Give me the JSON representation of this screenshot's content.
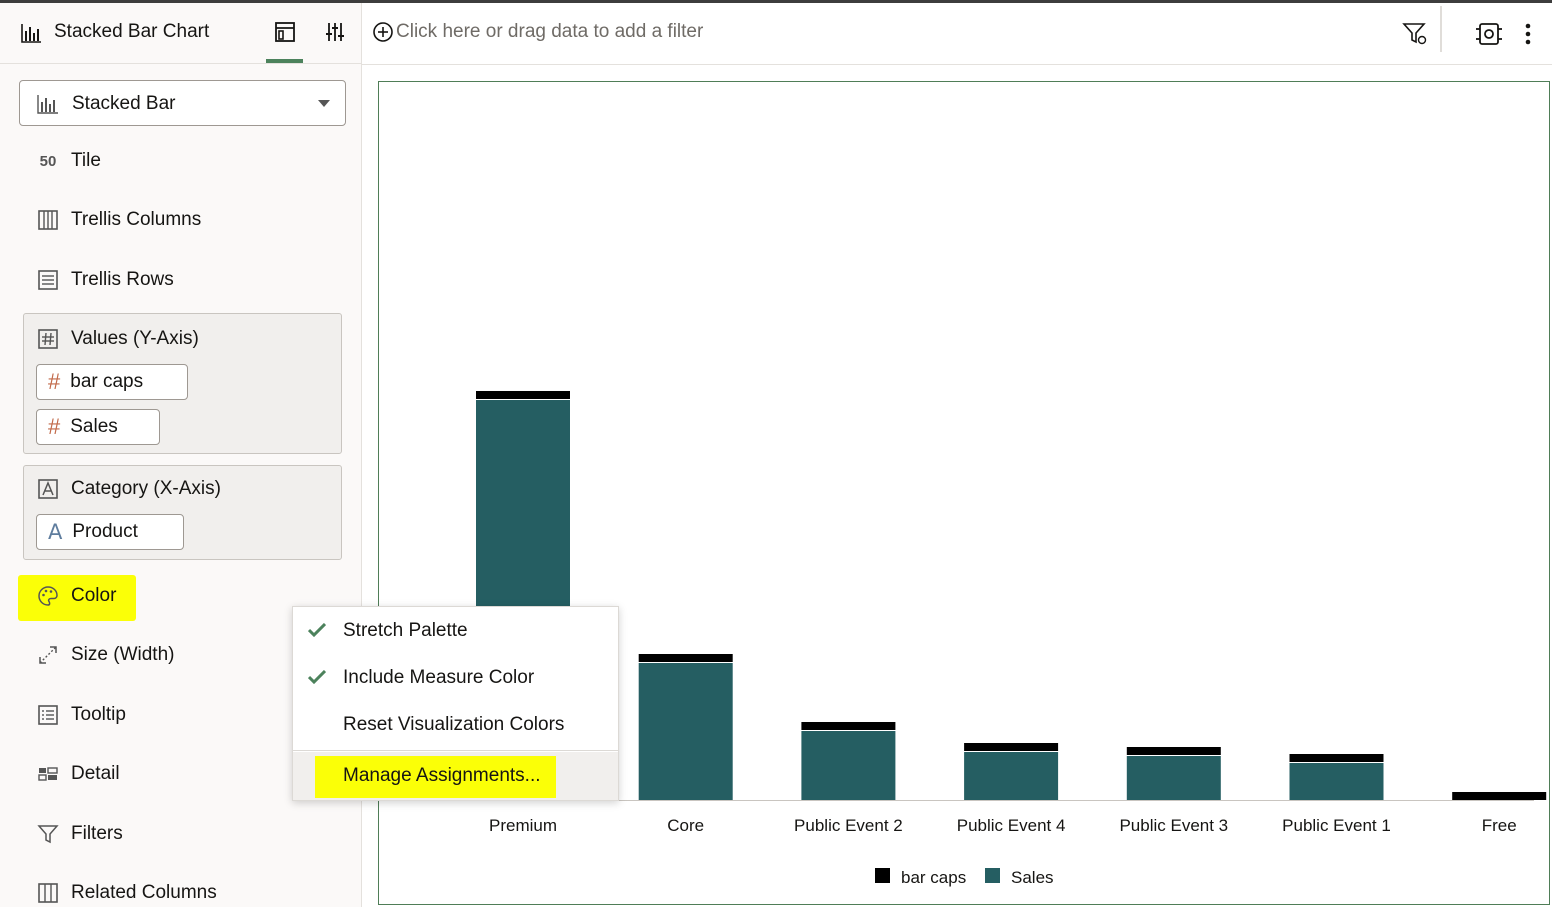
{
  "panel": {
    "title": "Stacked Bar Chart",
    "viz_type": "Stacked Bar",
    "drop_targets": {
      "tile": "Tile",
      "trellis_columns": "Trellis Columns",
      "trellis_rows": "Trellis Rows",
      "values_title": "Values (Y-Axis)",
      "values_items": [
        "bar caps",
        "Sales"
      ],
      "category_title": "Category (X-Axis)",
      "category_items": [
        "Product"
      ],
      "color": "Color",
      "size": "Size (Width)",
      "tooltip": "Tooltip",
      "detail": "Detail",
      "filters": "Filters",
      "related_columns": "Related Columns"
    }
  },
  "filterbar": {
    "placeholder": "Click here or drag data to add a filter"
  },
  "menu": {
    "items": [
      {
        "label": "Stretch Palette",
        "checked": true
      },
      {
        "label": "Include Measure Color",
        "checked": true
      },
      {
        "label": "Reset Visualization Colors",
        "checked": false
      },
      {
        "label": "Manage Assignments...",
        "checked": false
      }
    ]
  },
  "colors": {
    "sales": "#255e62",
    "bar_caps": "#000000",
    "highlight": "#fbff07",
    "accent": "#4c825c"
  },
  "chart_data": {
    "type": "bar",
    "stacked": true,
    "categories": [
      "Premium",
      "Core",
      "Public Event 2",
      "Public Event 4",
      "Public Event 3",
      "Public Event 1",
      "Free"
    ],
    "series": [
      {
        "name": "Sales",
        "values": [
          400,
          137,
          69,
          48,
          44,
          37,
          0
        ]
      },
      {
        "name": "bar caps",
        "values": [
          8,
          8,
          8,
          8,
          8,
          8,
          8
        ]
      }
    ],
    "legend": [
      "bar caps",
      "Sales"
    ],
    "legend_position": "bottom",
    "grid": false,
    "ylim": [
      0,
      600
    ]
  }
}
